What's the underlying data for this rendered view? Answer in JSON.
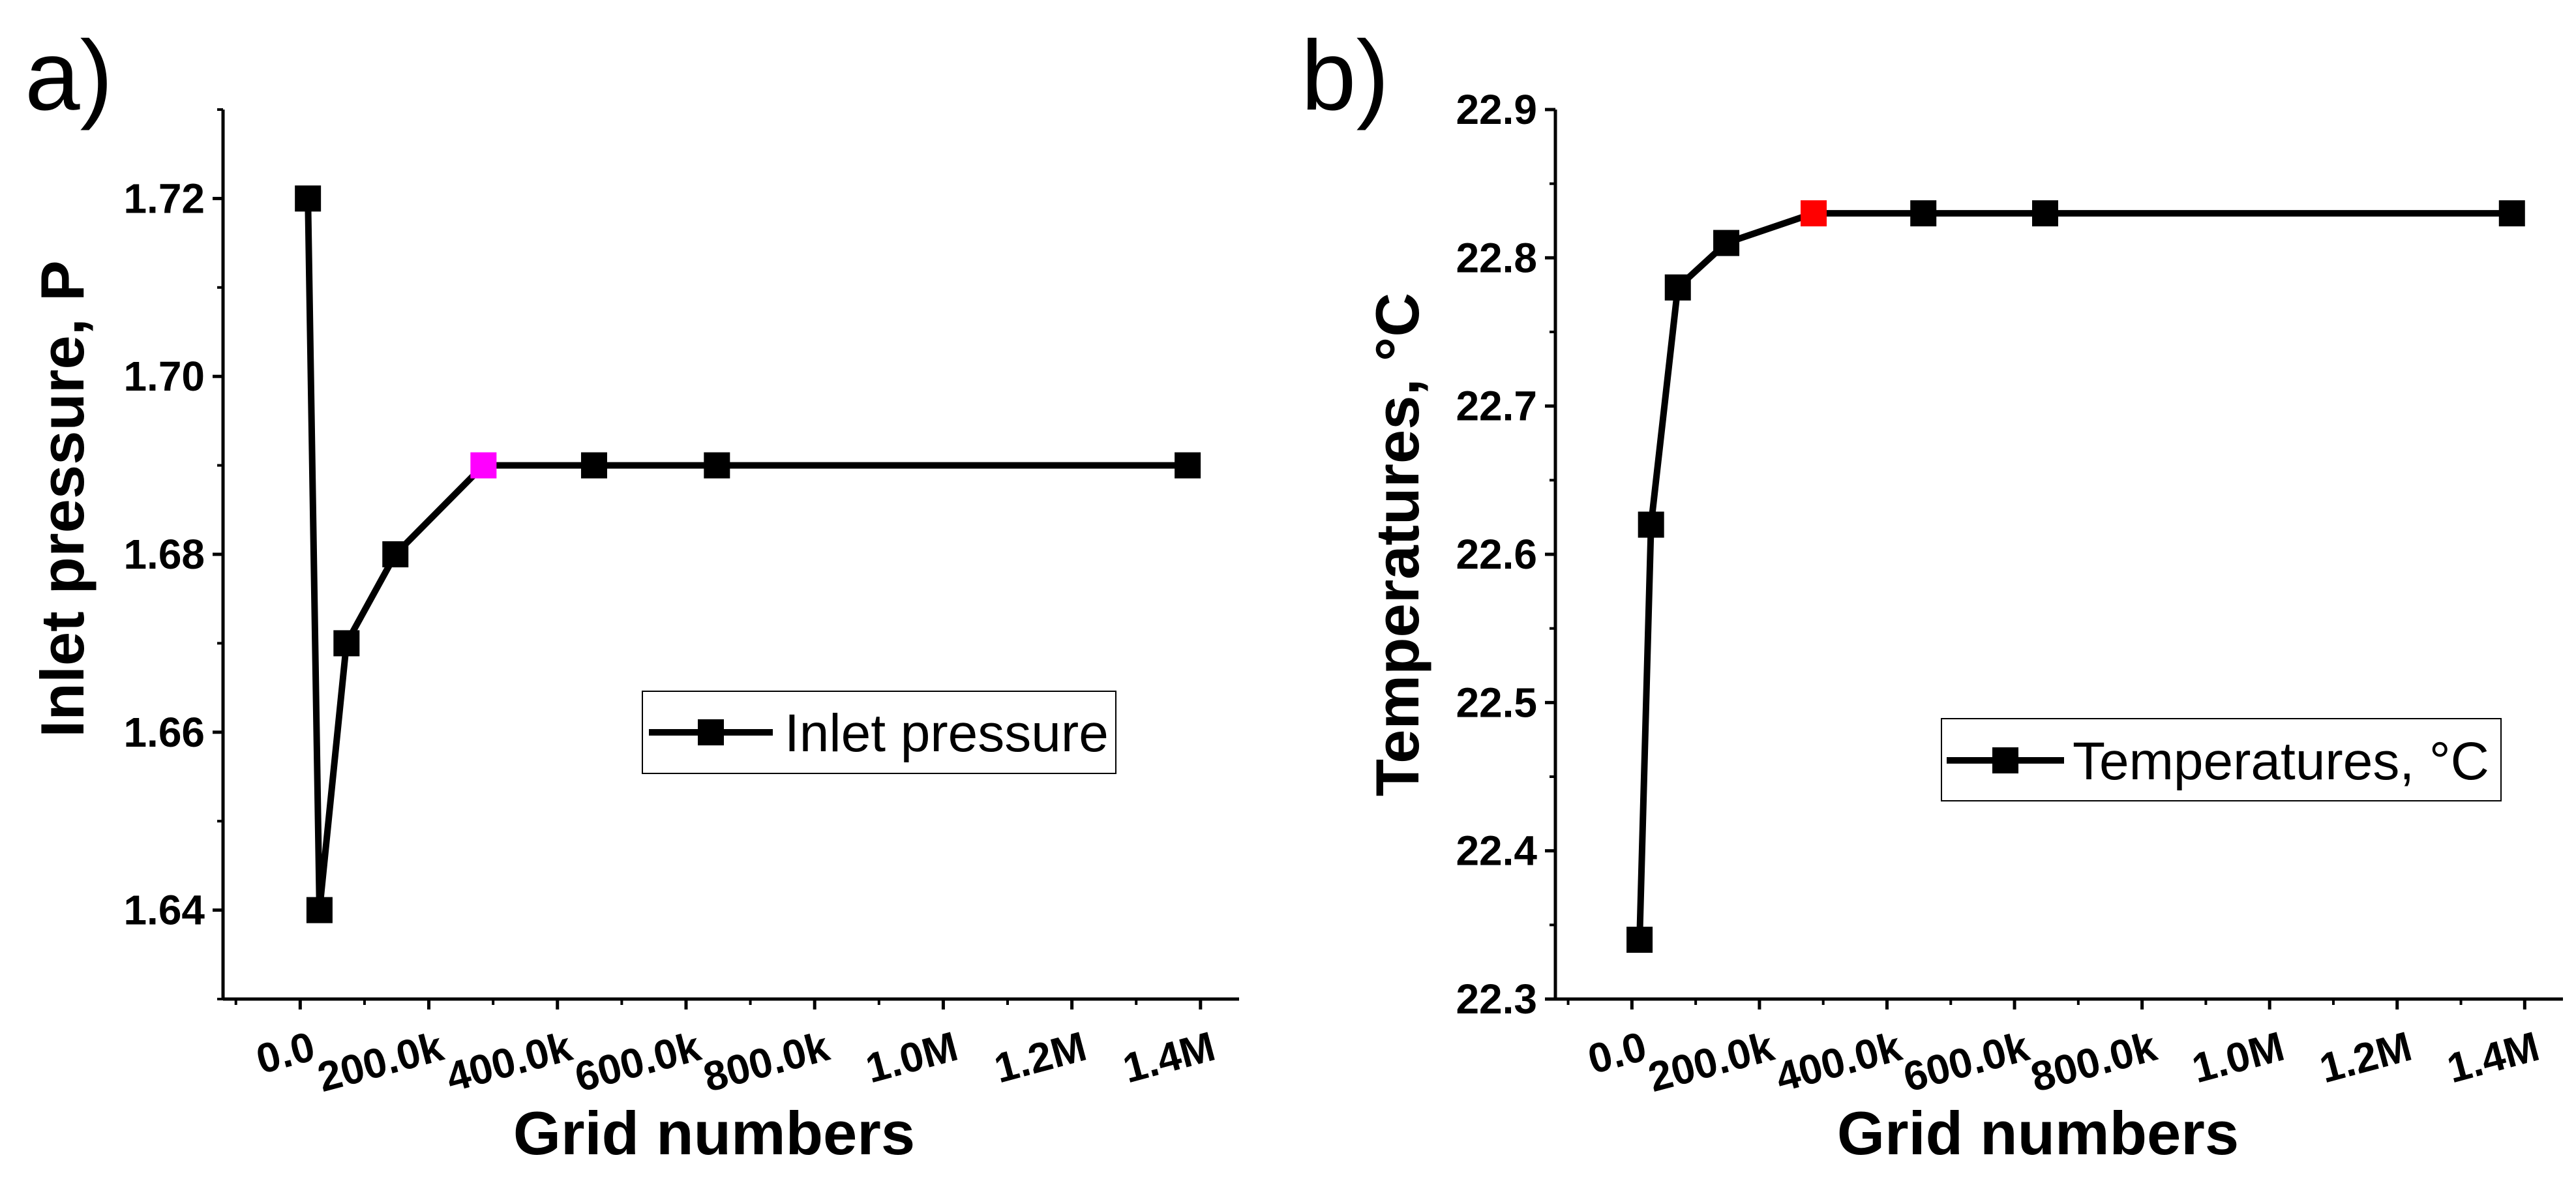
{
  "chart_data": [
    {
      "id": "a",
      "type": "line",
      "panel_label": "a)",
      "title": "",
      "xlabel": "Grid numbers",
      "ylabel": "Inlet pressure, P",
      "xlim": [
        -120000,
        1460000
      ],
      "ylim": [
        1.63,
        1.73
      ],
      "xticks": [
        {
          "value": 0,
          "label": "0.0"
        },
        {
          "value": 200000,
          "label": "200.0k"
        },
        {
          "value": 400000,
          "label": "400.0k"
        },
        {
          "value": 600000,
          "label": "600.0k"
        },
        {
          "value": 800000,
          "label": "800.0k"
        },
        {
          "value": 1000000,
          "label": "1.0M"
        },
        {
          "value": 1200000,
          "label": "1.2M"
        },
        {
          "value": 1400000,
          "label": "1.4M"
        }
      ],
      "yticks": [
        {
          "value": 1.64,
          "label": "1.64"
        },
        {
          "value": 1.66,
          "label": "1.66"
        },
        {
          "value": 1.68,
          "label": "1.68"
        },
        {
          "value": 1.7,
          "label": "1.70"
        },
        {
          "value": 1.72,
          "label": "1.72"
        }
      ],
      "series": [
        {
          "name": "Inlet pressure",
          "color": "#000000",
          "x": [
            12000,
            30000,
            72000,
            148000,
            285000,
            457000,
            648000,
            1380000
          ],
          "y": [
            1.72,
            1.64,
            1.67,
            1.68,
            1.69,
            1.69,
            1.69,
            1.69
          ],
          "marker_colors": [
            "#000000",
            "#000000",
            "#000000",
            "#000000",
            "#ff00ff",
            "#000000",
            "#000000",
            "#000000"
          ]
        }
      ],
      "legend": {
        "position": "center-right",
        "label": "Inlet pressure"
      }
    },
    {
      "id": "b",
      "type": "line",
      "panel_label": "b)",
      "title": "",
      "xlabel": "Grid numbers",
      "ylabel": "Temperatures, °C",
      "xlim": [
        -120000,
        1460000
      ],
      "ylim": [
        22.3,
        22.9
      ],
      "xticks": [
        {
          "value": 0,
          "label": "0.0"
        },
        {
          "value": 200000,
          "label": "200.0k"
        },
        {
          "value": 400000,
          "label": "400.0k"
        },
        {
          "value": 600000,
          "label": "600.0k"
        },
        {
          "value": 800000,
          "label": "800.0k"
        },
        {
          "value": 1000000,
          "label": "1.0M"
        },
        {
          "value": 1200000,
          "label": "1.2M"
        },
        {
          "value": 1400000,
          "label": "1.4M"
        }
      ],
      "yticks": [
        {
          "value": 22.3,
          "label": "22.3"
        },
        {
          "value": 22.4,
          "label": "22.4"
        },
        {
          "value": 22.5,
          "label": "22.5"
        },
        {
          "value": 22.6,
          "label": "22.6"
        },
        {
          "value": 22.7,
          "label": "22.7"
        },
        {
          "value": 22.8,
          "label": "22.8"
        },
        {
          "value": 22.9,
          "label": "22.9"
        }
      ],
      "series": [
        {
          "name": "Temperatures, °C",
          "color": "#000000",
          "x": [
            12000,
            30000,
            72000,
            148000,
            285000,
            457000,
            648000,
            1380000
          ],
          "y": [
            22.34,
            22.62,
            22.78,
            22.81,
            22.83,
            22.83,
            22.83,
            22.83
          ],
          "marker_colors": [
            "#000000",
            "#000000",
            "#000000",
            "#000000",
            "#ff0000",
            "#000000",
            "#000000",
            "#000000"
          ]
        }
      ],
      "legend": {
        "position": "lower-right",
        "label": "Temperatures, °C"
      }
    }
  ]
}
